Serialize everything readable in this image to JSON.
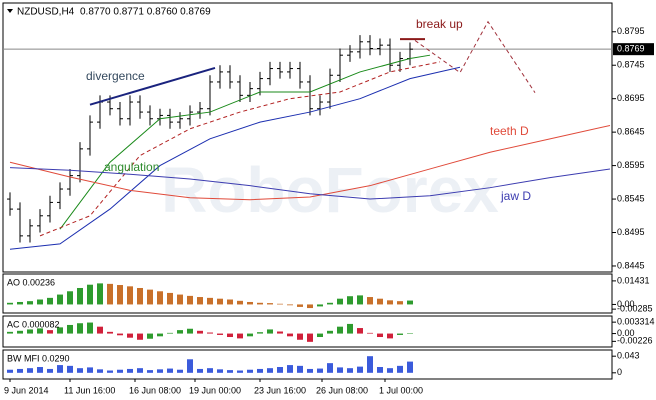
{
  "chart_data": [
    {
      "type": "ohlc",
      "title": "NZDUSD,H4",
      "subtitle": "0.8770 0.8771 0.8760 0.8769",
      "watermark": "RoboForex",
      "color": "#000000",
      "grid": false,
      "open": [
        0.8545,
        0.853,
        0.849,
        0.8505,
        0.852,
        0.854,
        0.856,
        0.858,
        0.862,
        0.866,
        0.869,
        0.868,
        0.8665,
        0.869,
        0.8675,
        0.8665,
        0.867,
        0.866,
        0.8665,
        0.8675,
        0.868,
        0.872,
        0.8735,
        0.872,
        0.87,
        0.871,
        0.8725,
        0.874,
        0.8735,
        0.874,
        0.872,
        0.868,
        0.869,
        0.873,
        0.876,
        0.8765,
        0.878,
        0.877,
        0.8775,
        0.8745,
        0.8755
      ],
      "high": [
        0.8555,
        0.854,
        0.8515,
        0.853,
        0.855,
        0.857,
        0.859,
        0.863,
        0.867,
        0.87,
        0.87,
        0.869,
        0.87,
        0.87,
        0.8685,
        0.868,
        0.868,
        0.8675,
        0.8685,
        0.869,
        0.873,
        0.8745,
        0.8745,
        0.873,
        0.872,
        0.8735,
        0.875,
        0.875,
        0.875,
        0.875,
        0.873,
        0.87,
        0.874,
        0.877,
        0.8775,
        0.879,
        0.879,
        0.8785,
        0.8785,
        0.8765,
        0.8779
      ],
      "low": [
        0.852,
        0.848,
        0.848,
        0.8495,
        0.851,
        0.853,
        0.855,
        0.857,
        0.861,
        0.865,
        0.867,
        0.8655,
        0.8655,
        0.8665,
        0.8655,
        0.8655,
        0.865,
        0.865,
        0.8655,
        0.8665,
        0.867,
        0.871,
        0.871,
        0.869,
        0.869,
        0.87,
        0.8715,
        0.8725,
        0.8725,
        0.871,
        0.867,
        0.867,
        0.868,
        0.872,
        0.875,
        0.8755,
        0.876,
        0.876,
        0.8735,
        0.8735,
        0.8745
      ],
      "close": [
        0.853,
        0.849,
        0.8505,
        0.852,
        0.854,
        0.856,
        0.858,
        0.862,
        0.866,
        0.869,
        0.868,
        0.8665,
        0.869,
        0.8675,
        0.8665,
        0.867,
        0.866,
        0.8665,
        0.8675,
        0.868,
        0.872,
        0.8735,
        0.872,
        0.87,
        0.871,
        0.8725,
        0.874,
        0.8735,
        0.874,
        0.872,
        0.868,
        0.869,
        0.873,
        0.876,
        0.8765,
        0.878,
        0.877,
        0.8775,
        0.8745,
        0.8755,
        0.8769
      ],
      "ylim": [
        0.8436,
        0.8835
      ],
      "yticks": [
        0.8795,
        0.8745,
        0.8695,
        0.8645,
        0.8595,
        0.8545,
        0.8495,
        0.8445
      ],
      "current_price": 0.8769,
      "overlays": [
        {
          "color": "#1a8a1a",
          "x": [
            5,
            10,
            15,
            20,
            25,
            30,
            35,
            40,
            42
          ],
          "values": [
            0.85,
            0.86,
            0.8665,
            0.8675,
            0.8705,
            0.8705,
            0.8735,
            0.8755,
            0.876
          ]
        },
        {
          "color": "#b22222",
          "dashed": true,
          "x": [
            3,
            8,
            13,
            18,
            23,
            28,
            33,
            38,
            43
          ],
          "values": [
            0.849,
            0.852,
            0.861,
            0.865,
            0.8675,
            0.8695,
            0.8705,
            0.8735,
            0.875
          ]
        },
        {
          "color": "#1c2fb0",
          "x": [
            0,
            5,
            10,
            15,
            20,
            25,
            30,
            35,
            40,
            45
          ],
          "values": [
            0.847,
            0.8478,
            0.853,
            0.8595,
            0.8635,
            0.866,
            0.8675,
            0.8695,
            0.8725,
            0.8742
          ]
        },
        {
          "name": "teeth D",
          "color": "#e04a3a",
          "x": [
            0,
            6,
            12,
            18,
            24,
            30,
            36,
            42,
            48,
            54,
            60
          ],
          "values": [
            0.86,
            0.8578,
            0.8558,
            0.8547,
            0.8544,
            0.8548,
            0.8565,
            0.859,
            0.8615,
            0.8635,
            0.8655
          ]
        },
        {
          "name": "jaw D",
          "color": "#3c3cb0",
          "x": [
            0,
            6,
            12,
            18,
            24,
            30,
            36,
            42,
            48,
            54,
            60
          ],
          "values": [
            0.8592,
            0.8588,
            0.8582,
            0.8575,
            0.8565,
            0.8553,
            0.8545,
            0.855,
            0.8562,
            0.8577,
            0.859
          ]
        },
        {
          "color": "#a0303a",
          "dashed": true,
          "x": [
            40.5,
            45,
            47.8,
            52.5
          ],
          "values": [
            0.8782,
            0.8734,
            0.881,
            0.8704
          ]
        }
      ],
      "annotations": [
        {
          "text": "divergence",
          "color": "#34495e",
          "line_color": "#1a237e",
          "x": [
            8,
            20.5
          ],
          "values": [
            0.8686,
            0.8741
          ]
        },
        {
          "text": "angulation",
          "color": "#2e8b2e"
        },
        {
          "text": "break up",
          "color": "#8b1a1a",
          "line_color": "#8b1a1a",
          "x": [
            39,
            41.5
          ],
          "values": [
            0.8784,
            0.8784
          ]
        }
      ]
    },
    {
      "type": "bar",
      "title": "AO 0.00236",
      "up_color": "#2e9b2e",
      "down_color": "#c8702a",
      "values": [
        0.001,
        0.0015,
        0.002,
        0.003,
        0.004,
        0.006,
        0.008,
        0.01,
        0.012,
        0.0128,
        0.0125,
        0.0118,
        0.011,
        0.01,
        0.009,
        0.008,
        0.007,
        0.006,
        0.0052,
        0.0045,
        0.004,
        0.0035,
        0.003,
        0.0022,
        0.0015,
        0.001,
        0.0008,
        0.0004,
        -0.0005,
        -0.0015,
        -0.0022,
        -0.0012,
        0.001,
        0.0035,
        0.005,
        0.0055,
        0.0045,
        0.0035,
        0.0025,
        0.002,
        0.00236
      ],
      "ylim": [
        -0.0052,
        0.0185
      ],
      "yticks": [
        0.01431,
        {
          "value": 0,
          "label": "0.00"
        },
        -0.00285
      ]
    },
    {
      "type": "bar",
      "title": "AC 0.000082",
      "up_color": "#2e9b2e",
      "down_color": "#d0203a",
      "values": [
        0.0005,
        0.0008,
        0.0012,
        0.0015,
        0.001,
        0.0018,
        0.0025,
        0.003,
        0.0032,
        0.002,
        0.0005,
        -0.0005,
        -0.0012,
        -0.0018,
        -0.0015,
        -0.0008,
        0.0002,
        0.001,
        0.0014,
        0.0008,
        0.0003,
        -0.0004,
        -0.001,
        -0.0014,
        -0.0008,
        0.0004,
        0.0012,
        0.0006,
        -0.0008,
        -0.0018,
        -0.0024,
        -0.001,
        0.0008,
        0.002,
        0.0028,
        0.0016,
        0.0002,
        -0.001,
        -0.0014,
        -0.0004,
        8.2e-05
      ],
      "ylim": [
        -0.0039,
        0.0051
      ],
      "yticks": [
        0.003314,
        {
          "value": 0,
          "label": "0.00"
        },
        -0.00226
      ]
    },
    {
      "type": "bar",
      "title": "BW MFI 0.0290",
      "color": "#3b5bdb",
      "values": [
        0.008,
        0.01,
        0.012,
        0.015,
        0.01,
        0.02,
        0.018,
        0.012,
        0.014,
        0.009,
        0.006,
        0.008,
        0.01,
        0.012,
        0.007,
        0.009,
        0.011,
        0.008,
        0.035,
        0.01,
        0.012,
        0.009,
        0.007,
        0.006,
        0.008,
        0.01,
        0.012,
        0.015,
        0.02,
        0.018,
        0.01,
        0.011,
        0.025,
        0.014,
        0.012,
        0.016,
        0.043,
        0.015,
        0.012,
        0.018,
        0.029
      ],
      "ylim": [
        -0.016,
        0.059
      ],
      "yticks": [
        0.043,
        0
      ],
      "xticks": [
        {
          "value": 0,
          "label": "9 Jun 2014"
        },
        {
          "value": 6,
          "label": "11 Jun 16:00"
        },
        {
          "value": 12.5,
          "label": "16 Jun 08:00"
        },
        {
          "value": 18.5,
          "label": "19 Jun 00:00"
        },
        {
          "value": 25,
          "label": "23 Jun 16:00"
        },
        {
          "value": 31.2,
          "label": "26 Jun 08:00"
        },
        {
          "value": 37.5,
          "label": "1 Jul 00:00"
        }
      ]
    }
  ]
}
